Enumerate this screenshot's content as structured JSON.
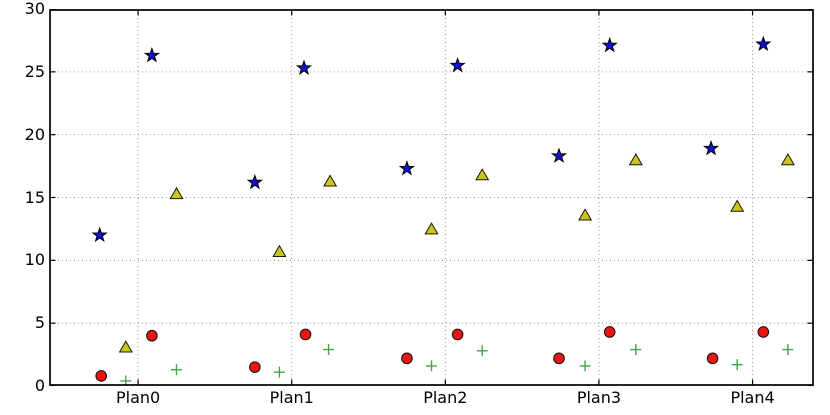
{
  "figure": {
    "background": "#ffffff",
    "title": "",
    "legend": "none"
  },
  "chart_data": {
    "type": "scatter",
    "title": "",
    "xlabel": "",
    "ylabel": "",
    "x_tick_labels": [
      "Plan0",
      "Plan1",
      "Plan2",
      "Plan3",
      "Plan4"
    ],
    "x_tick_positions": [
      0,
      1,
      2,
      3,
      4
    ],
    "y_ticks": [
      0,
      5,
      10,
      15,
      20,
      25,
      30
    ],
    "xlim": [
      -0.58,
      4.4
    ],
    "ylim": [
      0,
      30
    ],
    "grid": {
      "style": "dotted",
      "color": "#999999",
      "x": true,
      "y": true
    },
    "axes": {
      "spine_color": "#000000",
      "tick_direction": "in",
      "tick_length": 5,
      "text_color": "#000000"
    },
    "series": [
      {
        "name": "star-series",
        "marker": "star",
        "fill": "#1111D6",
        "edge": "#000000",
        "points": [
          [
            -0.25,
            12.0
          ],
          [
            0.09,
            26.3
          ],
          [
            0.76,
            16.2
          ],
          [
            1.08,
            25.3
          ],
          [
            1.75,
            17.3
          ],
          [
            2.08,
            25.5
          ],
          [
            2.74,
            18.3
          ],
          [
            3.07,
            27.1
          ],
          [
            3.73,
            18.9
          ],
          [
            4.07,
            27.2
          ]
        ]
      },
      {
        "name": "triangle-series",
        "marker": "triangle",
        "fill": "#C9C420",
        "edge": "#1a1a00",
        "points": [
          [
            -0.08,
            3.1
          ],
          [
            0.25,
            15.3
          ],
          [
            0.92,
            10.7
          ],
          [
            1.25,
            16.3
          ],
          [
            1.91,
            12.5
          ],
          [
            2.24,
            16.8
          ],
          [
            2.91,
            13.6
          ],
          [
            3.24,
            18.0
          ],
          [
            3.9,
            14.3
          ],
          [
            4.23,
            18.0
          ]
        ]
      },
      {
        "name": "circle-series",
        "marker": "circle",
        "fill": "#EB1414",
        "edge": "#111111",
        "points": [
          [
            -0.24,
            0.8
          ],
          [
            0.09,
            4.0
          ],
          [
            0.76,
            1.5
          ],
          [
            1.09,
            4.1
          ],
          [
            1.75,
            2.2
          ],
          [
            2.08,
            4.1
          ],
          [
            2.74,
            2.2
          ],
          [
            3.07,
            4.3
          ],
          [
            3.74,
            2.2
          ],
          [
            4.07,
            4.3
          ]
        ]
      },
      {
        "name": "plus-series",
        "marker": "plus",
        "stroke": "#44A544",
        "points": [
          [
            -0.08,
            0.4
          ],
          [
            0.25,
            1.3
          ],
          [
            0.92,
            1.1
          ],
          [
            1.24,
            2.9
          ],
          [
            1.91,
            1.6
          ],
          [
            2.24,
            2.8
          ],
          [
            2.91,
            1.6
          ],
          [
            3.24,
            2.9
          ],
          [
            3.9,
            1.7
          ],
          [
            4.23,
            2.9
          ]
        ]
      }
    ]
  }
}
